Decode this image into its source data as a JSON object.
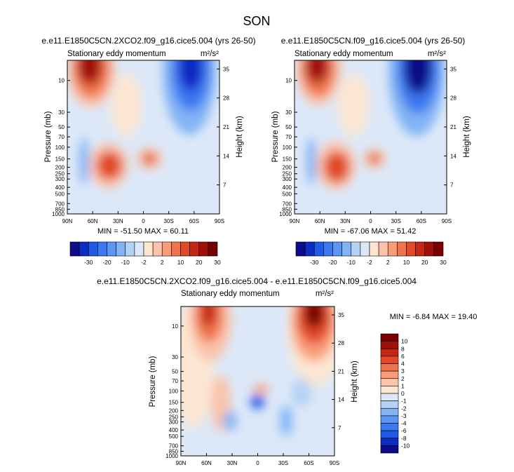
{
  "figure_title": "SON",
  "chart_data": [
    {
      "type": "heatmap",
      "title": "e.e11.E1850C5CN.2XCO2.f09_g16.cice5.004 (yrs 26-50)",
      "left_subtitle": "Stationary eddy momentum",
      "units_label": "m²/s²",
      "xlabel": "",
      "ylabel": "Pressure (mb)",
      "ylabel_right": "Height (km)",
      "x_ticks": [
        "90N",
        "60N",
        "30N",
        "0",
        "30S",
        "60S",
        "90S"
      ],
      "y_ticks_pressure": [
        "10",
        "30",
        "50",
        "70",
        "100",
        "150",
        "200",
        "250",
        "300",
        "400",
        "500",
        "700",
        "850",
        "1000"
      ],
      "y_ticks_height": [
        "35",
        "28",
        "21",
        "14",
        "7"
      ],
      "min_max_text": "MIN = -51.50   MAX = 60.11",
      "min": -51.5,
      "max": 60.11,
      "colorbar_labels": [
        "-30",
        "-20",
        "-10",
        "-2",
        "2",
        "10",
        "20",
        "30"
      ],
      "features": [
        {
          "lat": 60,
          "p": 10,
          "value": 60
        },
        {
          "lat": 30,
          "p": 200,
          "value": 20
        },
        {
          "lat": 0,
          "p": 150,
          "value": 15
        },
        {
          "lat": -55,
          "p": 10,
          "value": -50
        },
        {
          "lat": -65,
          "p": 30,
          "value": -30
        }
      ]
    },
    {
      "type": "heatmap",
      "title": "e.e11.E1850C5CN.f09_g16.cice5.004 (yrs 26-50)",
      "left_subtitle": "Stationary eddy momentum",
      "units_label": "m²/s²",
      "xlabel": "",
      "ylabel": "Pressure (mb)",
      "ylabel_right": "Height (km)",
      "x_ticks": [
        "90N",
        "60N",
        "30N",
        "0",
        "30S",
        "60S",
        "90S"
      ],
      "y_ticks_pressure": [
        "10",
        "30",
        "50",
        "70",
        "100",
        "150",
        "200",
        "250",
        "300",
        "400",
        "500",
        "700",
        "850",
        "1000"
      ],
      "y_ticks_height": [
        "35",
        "28",
        "21",
        "14",
        "7"
      ],
      "min_max_text": "MIN = -67.06   MAX = 51.42",
      "min": -67.06,
      "max": 51.42,
      "colorbar_labels": [
        "-30",
        "-20",
        "-10",
        "-2",
        "2",
        "10",
        "20",
        "30"
      ],
      "features": [
        {
          "lat": 60,
          "p": 10,
          "value": 50
        },
        {
          "lat": 30,
          "p": 200,
          "value": 20
        },
        {
          "lat": 0,
          "p": 150,
          "value": 15
        },
        {
          "lat": -55,
          "p": 10,
          "value": -65
        },
        {
          "lat": -65,
          "p": 30,
          "value": -30
        }
      ]
    },
    {
      "type": "heatmap",
      "title": "e.e11.E1850C5CN.2XCO2.f09_g16.cice5.004 - e.e11.E1850C5CN.f09_g16.cice5.004",
      "left_subtitle": "Stationary eddy momentum",
      "units_label": "m²/s²",
      "xlabel": "",
      "ylabel": "Pressure (mb)",
      "ylabel_right": "Height (km)",
      "x_ticks": [
        "90N",
        "60N",
        "30N",
        "0",
        "30S",
        "60S",
        "90S"
      ],
      "y_ticks_pressure": [
        "10",
        "30",
        "50",
        "70",
        "100",
        "150",
        "200",
        "250",
        "300",
        "400",
        "500",
        "700",
        "850",
        "1000"
      ],
      "y_ticks_height": [
        "35",
        "28",
        "21",
        "14",
        "7"
      ],
      "min_max_text": "MIN = -6.84   MAX = 19.40",
      "min": -6.84,
      "max": 19.4,
      "colorbar_labels": [
        "10",
        "8",
        "6",
        "4",
        "3",
        "2",
        "1",
        "0",
        "-1",
        "-2",
        "-3",
        "-4",
        "-6",
        "-8",
        "-10"
      ],
      "features": [
        {
          "lat": 60,
          "p": 10,
          "value": 10
        },
        {
          "lat": -65,
          "p": 10,
          "value": 19
        },
        {
          "lat": 0,
          "p": 100,
          "value": 3
        },
        {
          "lat": 0,
          "p": 175,
          "value": -7
        },
        {
          "lat": -30,
          "p": 300,
          "value": -2
        }
      ]
    }
  ],
  "colors": {
    "diverging_top": [
      "#0c0c8a",
      "#0c2cc4",
      "#1e5ae6",
      "#3c78f0",
      "#5a96f5",
      "#82b4f5",
      "#b4d2f5",
      "#dce8f8",
      "#fce6d2",
      "#fac3aa",
      "#f89c78",
      "#f0734b",
      "#e04a28",
      "#c42814",
      "#a01008",
      "#780000"
    ],
    "diverging_diff": [
      "#0c0c8a",
      "#0c2cc4",
      "#1e5ae6",
      "#3c78f0",
      "#5a96f5",
      "#82b4f5",
      "#b4d2f5",
      "#dce8f8",
      "#fce6d2",
      "#fac3aa",
      "#f89c78",
      "#f0734b",
      "#e04a28",
      "#c42814",
      "#a01008",
      "#780000"
    ]
  }
}
